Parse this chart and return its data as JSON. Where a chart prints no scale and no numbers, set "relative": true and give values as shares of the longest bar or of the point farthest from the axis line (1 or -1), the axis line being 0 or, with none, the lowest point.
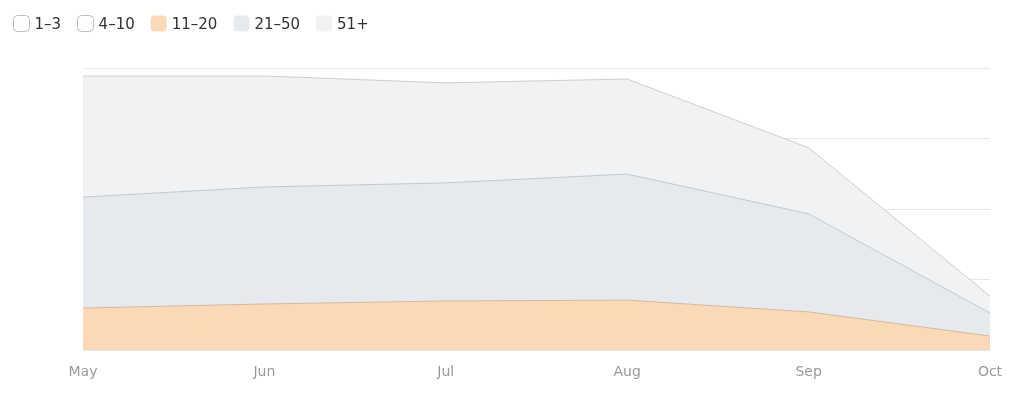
{
  "chart_data": {
    "type": "area",
    "stacked": true,
    "relative": true,
    "grid": "y",
    "legend": "top left",
    "marker": "none",
    "categories": [
      "May",
      "Jun",
      "Jul",
      "Aug",
      "Sep",
      "Oct"
    ],
    "series": [
      {
        "name": "1–3",
        "color": "#ffffff",
        "values": [
          null,
          null,
          null,
          null,
          null,
          null
        ]
      },
      {
        "name": "4–10",
        "color": "#ffffff",
        "values": [
          null,
          null,
          null,
          null,
          null,
          null
        ]
      },
      {
        "name": "11–20",
        "color": "#f9d9b6",
        "values": [
          0.153,
          0.168,
          0.179,
          0.182,
          0.139,
          0.051
        ]
      },
      {
        "name": "21–50",
        "color": "#e6eaee",
        "values": [
          0.405,
          0.427,
          0.431,
          0.46,
          0.358,
          0.084
        ]
      },
      {
        "name": "51+",
        "color": "#f0f2f4",
        "values": [
          0.442,
          0.405,
          0.365,
          0.347,
          0.241,
          0.062
        ]
      }
    ]
  }
}
